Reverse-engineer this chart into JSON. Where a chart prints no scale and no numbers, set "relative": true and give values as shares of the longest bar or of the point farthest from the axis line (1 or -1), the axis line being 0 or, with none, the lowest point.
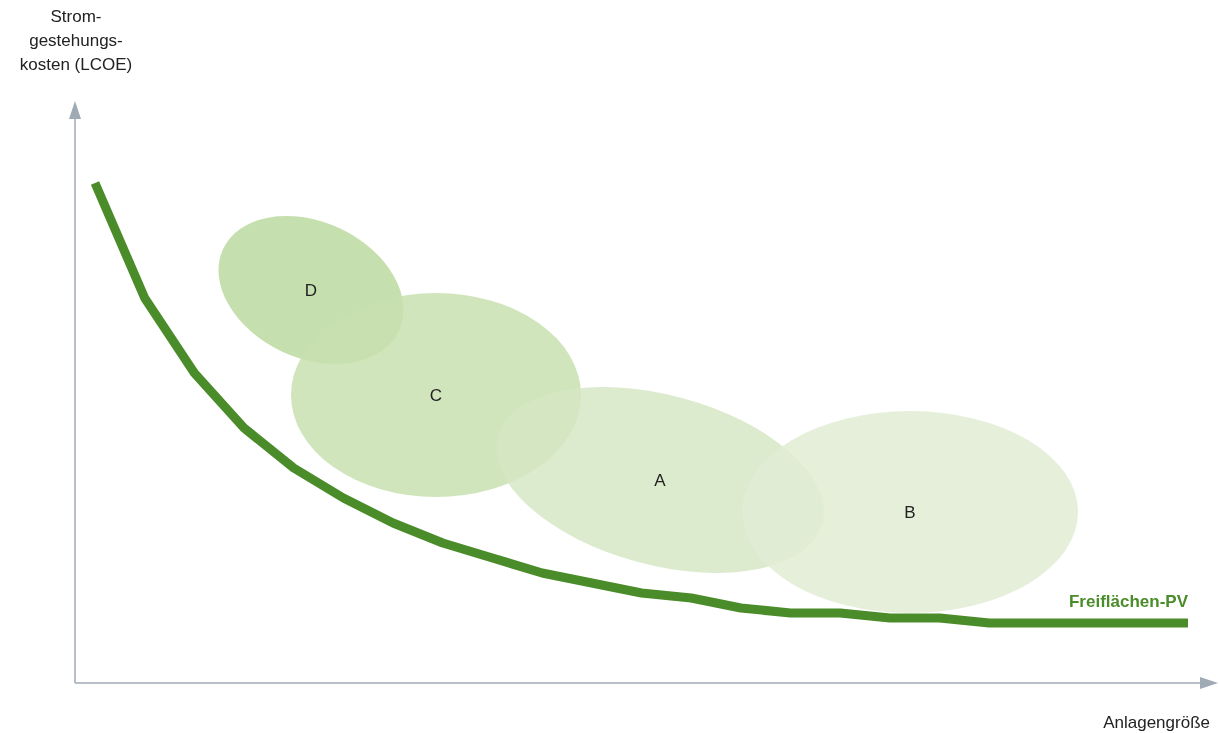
{
  "chart_data": {
    "type": "line",
    "relative": true,
    "xlabel": "Anlagengröße",
    "line_style": "solid",
    "annotations": [
      "D",
      "C",
      "A",
      "B",
      "Strom-\ngestehungs-\nkosten (LCOE)"
    ],
    "categories": [
      null,
      null,
      null,
      null,
      null,
      null,
      null,
      null,
      null,
      null,
      null,
      null,
      null,
      null,
      null,
      null,
      null,
      null,
      null,
      null,
      null,
      null,
      null
    ],
    "series": [
      {
        "name": "Freiflächen-PV",
        "color": "#4a8c2a",
        "values": [
          1,
          0.77,
          0.62,
          0.51,
          0.43,
          0.37,
          0.32,
          0.28,
          0.25,
          0.22,
          0.2,
          0.18,
          0.17,
          0.15,
          0.14,
          0.14,
          0.13,
          0.13,
          0.12,
          0.12,
          0.12,
          0.12,
          0.12
        ]
      }
    ]
  }
}
